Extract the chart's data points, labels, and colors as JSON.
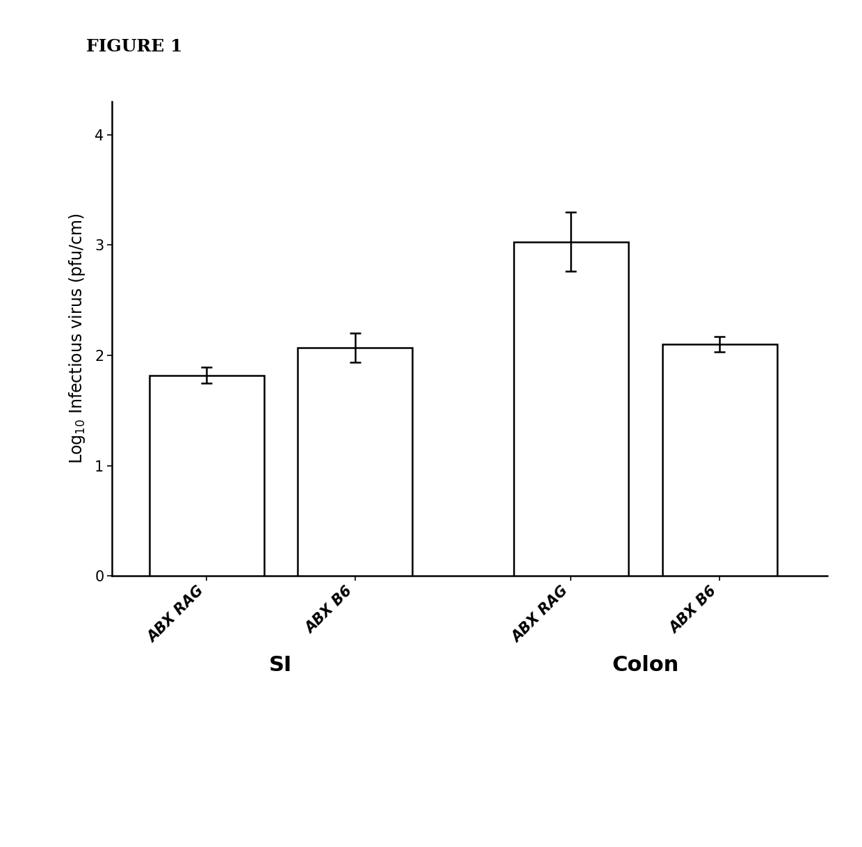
{
  "figure_title": "FIGURE 1",
  "groups": [
    "SI",
    "Colon"
  ],
  "bar_labels": [
    "ABX RAG",
    "ABX B6",
    "ABX RAG",
    "ABX B6"
  ],
  "bar_values": [
    1.82,
    2.07,
    3.03,
    2.1
  ],
  "bar_errors": [
    0.07,
    0.13,
    0.27,
    0.07
  ],
  "bar_color": "#ffffff",
  "bar_edgecolor": "#000000",
  "bar_linewidth": 1.8,
  "ylim": [
    0,
    4.3
  ],
  "yticks": [
    0,
    1,
    2,
    3,
    4
  ],
  "ylabel": "Log$_{10}$ Infectious virus (pfu/cm)",
  "group_label_fontsize": 22,
  "tick_label_fontsize": 15,
  "ylabel_fontsize": 17,
  "figure_title_fontsize": 18,
  "background_color": "#ffffff",
  "errorbar_color": "#000000",
  "errorbar_capsize": 6,
  "errorbar_linewidth": 1.8,
  "bar_positions": [
    1.0,
    2.1,
    3.7,
    4.8
  ],
  "bar_width": 0.85,
  "xlim": [
    0.3,
    5.6
  ]
}
